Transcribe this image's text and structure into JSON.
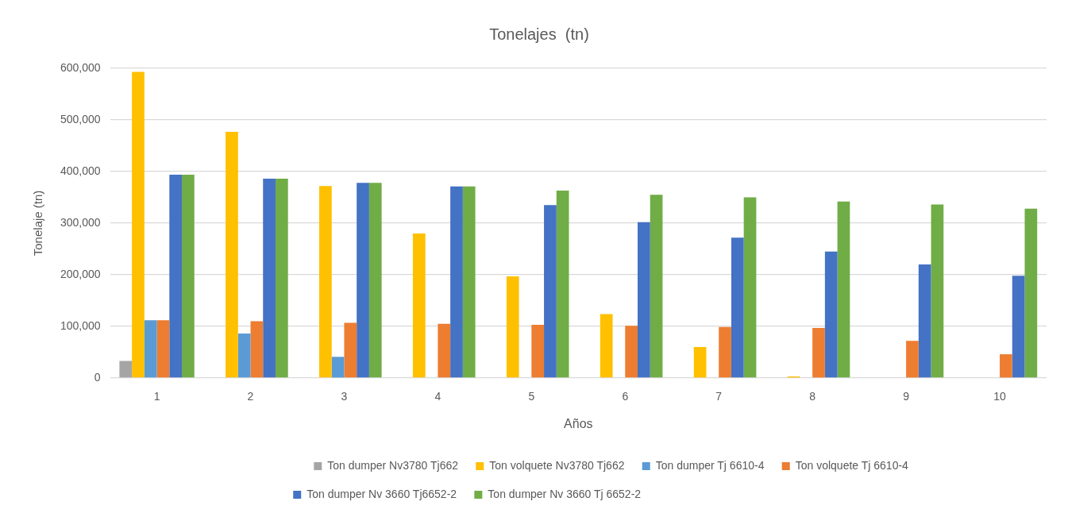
{
  "chart_data": {
    "type": "bar",
    "title": "Tonelajes  (tn)",
    "xlabel": "Años",
    "ylabel": "Tonelaje (tn)",
    "categories": [
      "1",
      "2",
      "3",
      "4",
      "5",
      "6",
      "7",
      "8",
      "9",
      "10"
    ],
    "series": [
      {
        "name": "Ton dumper Nv3780 Tj662",
        "color": "#a5a5a5",
        "values": [
          33000,
          null,
          null,
          null,
          null,
          null,
          null,
          null,
          null,
          null
        ]
      },
      {
        "name": "Ton volquete Nv3780 Tj662",
        "color": "#ffc000",
        "values": [
          593000,
          477000,
          372000,
          280000,
          197000,
          124000,
          60000,
          3000,
          null,
          null
        ]
      },
      {
        "name": "Ton dumper Tj 6610-4",
        "color": "#5b9bd5",
        "values": [
          112000,
          86000,
          41000,
          1000,
          null,
          null,
          null,
          null,
          null,
          null
        ]
      },
      {
        "name": "Ton volquete Tj 6610-4",
        "color": "#ed7d31",
        "values": [
          112000,
          110000,
          107000,
          105000,
          103000,
          101000,
          99000,
          97000,
          72000,
          46000
        ]
      },
      {
        "name": "Ton dumper Nv 3660 Tj6652-2",
        "color": "#4472c4",
        "values": [
          394000,
          386000,
          378000,
          371000,
          335000,
          302000,
          272000,
          245000,
          220000,
          198000
        ]
      },
      {
        "name": "Ton dumper Nv 3660 Tj 6652-2",
        "color": "#70ad47",
        "values": [
          394000,
          386000,
          378000,
          371000,
          363000,
          355000,
          350000,
          342000,
          336000,
          328000
        ]
      }
    ],
    "ylim": [
      0,
      600000
    ],
    "yticks": [
      {
        "value": 0,
        "label": "0"
      },
      {
        "value": 100000,
        "label": "100,000"
      },
      {
        "value": 200000,
        "label": "200,000"
      },
      {
        "value": 300000,
        "label": "300,000"
      },
      {
        "value": 400000,
        "label": "400,000"
      },
      {
        "value": 500000,
        "label": "500,000"
      },
      {
        "value": 600000,
        "label": "600,000"
      }
    ],
    "grid": "y",
    "legend": "bottom"
  }
}
